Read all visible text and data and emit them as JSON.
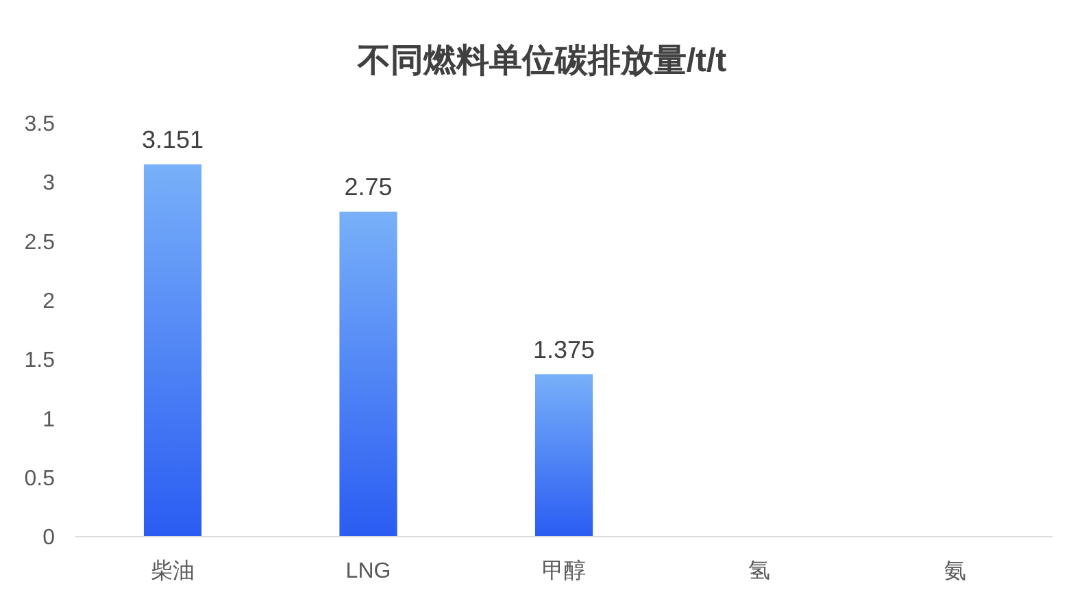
{
  "chart_data": {
    "type": "bar",
    "title": "不同燃料单位碳排放量/t/t",
    "categories": [
      "柴油",
      "LNG",
      "甲醇",
      "氢",
      "氨"
    ],
    "values": [
      3.151,
      2.75,
      1.375,
      0,
      0
    ],
    "value_labels": [
      "3.151",
      "2.75",
      "1.375",
      null,
      null
    ],
    "color": "#2a5cf2",
    "ylim": [
      0,
      3.5
    ],
    "yticks": [
      0,
      0.5,
      1,
      1.5,
      2,
      2.5,
      3,
      3.5
    ],
    "grid": false
  }
}
